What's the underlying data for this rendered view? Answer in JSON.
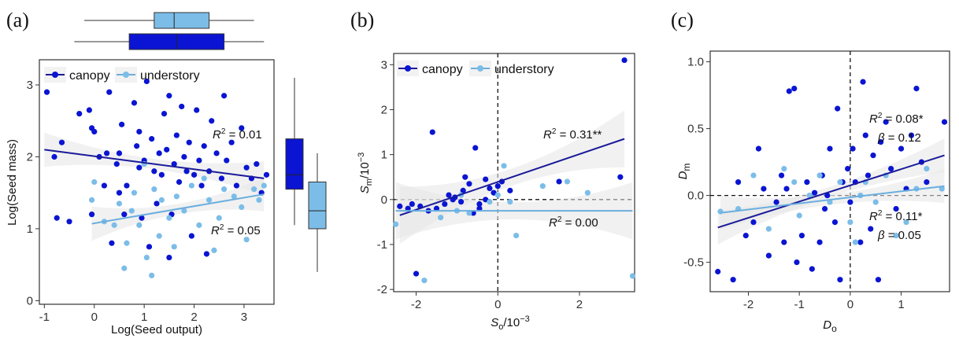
{
  "colors": {
    "canopy": "#0a14d2",
    "understory": "#7cbde8",
    "canopy_line": "#1a1a9a",
    "understory_line": "#6aaede",
    "band": "#e6e6e6"
  },
  "chart_data": [
    {
      "panel": "(a)",
      "type": "scatter",
      "xlabel": "Log(Seed output)",
      "ylabel": "Log(Seed mass)",
      "xlim": [
        -1.1,
        3.6
      ],
      "ylim": [
        -0.05,
        3.35
      ],
      "xticks": [
        "-1",
        "0",
        "1",
        "2",
        "3"
      ],
      "yticks": [
        "0",
        "1",
        "2",
        "3"
      ],
      "legend": "top-left",
      "series": [
        {
          "name": "canopy",
          "points": [
            [
              -0.95,
              2.9
            ],
            [
              -0.8,
              2.0
            ],
            [
              -0.65,
              2.2
            ],
            [
              -0.5,
              1.1
            ],
            [
              -0.75,
              1.15
            ],
            [
              -0.3,
              2.6
            ],
            [
              -0.1,
              2.65
            ],
            [
              -0.05,
              2.4
            ],
            [
              0.0,
              2.35
            ],
            [
              -0.05,
              1.2
            ],
            [
              0.1,
              2.0
            ],
            [
              0.2,
              1.6
            ],
            [
              0.25,
              2.05
            ],
            [
              0.3,
              2.9
            ],
            [
              0.35,
              0.8
            ],
            [
              0.45,
              1.9
            ],
            [
              0.5,
              2.05
            ],
            [
              0.5,
              1.5
            ],
            [
              0.55,
              2.45
            ],
            [
              0.6,
              1.2
            ],
            [
              0.65,
              1.6
            ],
            [
              0.75,
              3.15
            ],
            [
              0.8,
              2.75
            ],
            [
              0.85,
              2.15
            ],
            [
              0.9,
              1.85
            ],
            [
              0.9,
              2.35
            ],
            [
              0.95,
              1.15
            ],
            [
              1.0,
              1.95
            ],
            [
              1.05,
              3.05
            ],
            [
              1.1,
              0.75
            ],
            [
              1.15,
              2.25
            ],
            [
              1.2,
              1.8
            ],
            [
              1.25,
              1.35
            ],
            [
              1.3,
              2.05
            ],
            [
              1.35,
              1.75
            ],
            [
              1.4,
              2.6
            ],
            [
              1.45,
              2.1
            ],
            [
              1.5,
              2.85
            ],
            [
              1.55,
              1.2
            ],
            [
              1.6,
              1.9
            ],
            [
              1.65,
              2.3
            ],
            [
              1.7,
              1.65
            ],
            [
              1.75,
              2.7
            ],
            [
              1.8,
              2.0
            ],
            [
              1.85,
              1.8
            ],
            [
              1.9,
              2.2
            ],
            [
              1.95,
              0.9
            ],
            [
              2.0,
              1.75
            ],
            [
              2.05,
              2.65
            ],
            [
              2.1,
              1.95
            ],
            [
              2.15,
              1.6
            ],
            [
              2.2,
              2.15
            ],
            [
              2.25,
              0.65
            ],
            [
              2.3,
              1.8
            ],
            [
              2.35,
              2.5
            ],
            [
              2.45,
              2.05
            ],
            [
              2.55,
              1.7
            ],
            [
              2.6,
              2.85
            ],
            [
              2.65,
              1.95
            ],
            [
              2.75,
              2.2
            ],
            [
              2.85,
              1.6
            ],
            [
              2.95,
              2.4
            ],
            [
              3.05,
              1.85
            ],
            [
              3.15,
              1.7
            ],
            [
              3.25,
              1.9
            ],
            [
              3.35,
              1.5
            ],
            [
              3.45,
              1.75
            ],
            [
              1.5,
              0.6
            ]
          ],
          "fit": {
            "x": [
              -1.0,
              3.4
            ],
            "y": [
              2.1,
              1.7
            ]
          }
        },
        {
          "name": "understory",
          "points": [
            [
              -0.05,
              1.4
            ],
            [
              0.0,
              1.65
            ],
            [
              0.2,
              1.1
            ],
            [
              0.4,
              1.05
            ],
            [
              0.5,
              1.35
            ],
            [
              0.6,
              0.45
            ],
            [
              0.65,
              0.8
            ],
            [
              0.75,
              1.25
            ],
            [
              0.8,
              1.5
            ],
            [
              0.9,
              1.05
            ],
            [
              1.0,
              1.9
            ],
            [
              1.05,
              0.6
            ],
            [
              1.15,
              0.35
            ],
            [
              1.2,
              1.55
            ],
            [
              1.3,
              0.9
            ],
            [
              1.35,
              1.4
            ],
            [
              1.5,
              1.15
            ],
            [
              1.6,
              0.75
            ],
            [
              1.65,
              1.45
            ],
            [
              1.8,
              1.25
            ],
            [
              1.95,
              1.6
            ],
            [
              2.1,
              1.05
            ],
            [
              2.2,
              1.7
            ],
            [
              2.3,
              1.4
            ],
            [
              2.4,
              0.7
            ],
            [
              2.5,
              1.15
            ],
            [
              2.6,
              1.55
            ],
            [
              2.8,
              1.45
            ],
            [
              2.95,
              1.3
            ],
            [
              3.05,
              0.85
            ],
            [
              3.2,
              1.55
            ],
            [
              3.3,
              1.4
            ],
            [
              3.4,
              1.6
            ]
          ],
          "fit": {
            "x": [
              -0.05,
              3.4
            ],
            "y": [
              1.07,
              1.48
            ]
          }
        }
      ],
      "annotations": [
        {
          "sym": "R",
          "sup": "2",
          "text": " = 0.01"
        },
        {
          "sym": "R",
          "sup": "2",
          "text": " = 0.05"
        }
      ],
      "boxplots": {
        "x_canopy": {
          "whisker": [
            -0.4,
            3.4
          ],
          "box": [
            0.7,
            2.6
          ],
          "median": 1.65
        },
        "x_understory": {
          "whisker": [
            -0.2,
            3.2
          ],
          "box": [
            1.2,
            2.3
          ],
          "median": 1.6
        },
        "y_canopy": {
          "whisker": [
            1.05,
            3.1
          ],
          "box": [
            1.55,
            2.25
          ],
          "median": 1.75
        },
        "y_understory": {
          "whisker": [
            0.4,
            2.05
          ],
          "box": [
            1.0,
            1.65
          ],
          "median": 1.25
        }
      }
    },
    {
      "panel": "(b)",
      "type": "scatter",
      "xlabel": "S_o/10^-3",
      "xlabel_parts": [
        "S",
        "o",
        "/10",
        "−3"
      ],
      "ylabel_parts": [
        "S",
        "m",
        "/10",
        "−3"
      ],
      "xlim": [
        -2.55,
        3.35
      ],
      "ylim": [
        -2.05,
        3.25
      ],
      "xticks": [
        "-2",
        "0",
        "2"
      ],
      "yticks": [
        "-2",
        "-1",
        "0",
        "1",
        "2",
        "3"
      ],
      "legend": "top-left",
      "series": [
        {
          "name": "canopy",
          "points": [
            [
              -2.4,
              -0.15
            ],
            [
              -2.2,
              -0.2
            ],
            [
              -2.1,
              -0.1
            ],
            [
              -1.9,
              -0.15
            ],
            [
              -1.7,
              -0.25
            ],
            [
              -1.5,
              -0.2
            ],
            [
              -1.3,
              -0.1
            ],
            [
              -1.2,
              0.1
            ],
            [
              -1.05,
              0.05
            ],
            [
              -0.9,
              -0.05
            ],
            [
              -0.85,
              0.2
            ],
            [
              -0.7,
              0.35
            ],
            [
              -0.6,
              -0.3
            ],
            [
              -0.45,
              -0.2
            ],
            [
              -0.3,
              0.45
            ],
            [
              -0.2,
              0.25
            ],
            [
              -0.1,
              0.15
            ],
            [
              0.0,
              0.3
            ],
            [
              0.1,
              0.4
            ],
            [
              -1.6,
              1.5
            ],
            [
              -0.55,
              1.15
            ],
            [
              -0.45,
              -0.1
            ],
            [
              -2.0,
              -1.65
            ],
            [
              3.1,
              3.1
            ],
            [
              3.0,
              0.5
            ],
            [
              1.5,
              0.4
            ],
            [
              0.3,
              0.2
            ],
            [
              -1.1,
              0.0
            ],
            [
              -0.8,
              0.5
            ],
            [
              -0.3,
              0.0
            ]
          ],
          "fit": {
            "x": [
              -2.4,
              3.1
            ],
            "y": [
              -0.35,
              1.35
            ]
          }
        },
        {
          "name": "understory",
          "points": [
            [
              -2.5,
              -0.55
            ],
            [
              -1.8,
              -1.8
            ],
            [
              -1.4,
              -0.4
            ],
            [
              -1.0,
              -0.25
            ],
            [
              -0.7,
              -0.3
            ],
            [
              -0.2,
              -0.05
            ],
            [
              0.15,
              0.75
            ],
            [
              0.3,
              -0.05
            ],
            [
              0.45,
              -0.8
            ],
            [
              1.1,
              0.3
            ],
            [
              1.7,
              0.4
            ],
            [
              2.2,
              0.15
            ],
            [
              3.3,
              -1.7
            ],
            [
              -0.9,
              0.1
            ],
            [
              0.0,
              0.1
            ]
          ],
          "fit": {
            "x": [
              -2.5,
              3.3
            ],
            "y": [
              -0.25,
              -0.25
            ]
          }
        }
      ],
      "annotations": [
        {
          "sym": "R",
          "sup": "2",
          "text": " = 0.31**"
        },
        {
          "sym": "R",
          "sup": "2",
          "text": " = 0.00"
        }
      ]
    },
    {
      "panel": "(c)",
      "type": "scatter",
      "xlabel": "D_o",
      "xlabel_parts": [
        "D",
        "o"
      ],
      "ylabel_parts": [
        "D",
        "m"
      ],
      "xlim": [
        -2.75,
        1.95
      ],
      "ylim": [
        -0.72,
        1.08
      ],
      "xticks": [
        "-2",
        "-1",
        "0",
        "1"
      ],
      "yticks": [
        "-0.5",
        "0.0",
        "0.5",
        "1.0"
      ],
      "legend": "none",
      "series": [
        {
          "name": "canopy",
          "points": [
            [
              -2.6,
              -0.57
            ],
            [
              -2.3,
              -0.63
            ],
            [
              -2.2,
              0.1
            ],
            [
              -2.05,
              -0.3
            ],
            [
              -1.9,
              -0.2
            ],
            [
              -1.8,
              0.35
            ],
            [
              -1.7,
              0.05
            ],
            [
              -1.6,
              -0.45
            ],
            [
              -1.45,
              -0.05
            ],
            [
              -1.35,
              0.15
            ],
            [
              -1.25,
              0.05
            ],
            [
              -1.2,
              0.78
            ],
            [
              -1.1,
              0.8
            ],
            [
              -1.05,
              -0.5
            ],
            [
              -0.95,
              -0.3
            ],
            [
              -0.85,
              0.1
            ],
            [
              -0.75,
              -0.55
            ],
            [
              -0.7,
              0.02
            ],
            [
              -0.6,
              -0.35
            ],
            [
              -0.5,
              -0.1
            ],
            [
              -0.45,
              0.0
            ],
            [
              -0.4,
              0.35
            ],
            [
              -0.3,
              -0.2
            ],
            [
              -0.25,
              0.65
            ],
            [
              -0.2,
              -0.63
            ],
            [
              -0.15,
              0.1
            ],
            [
              -0.05,
              0.2
            ],
            [
              0.0,
              -0.05
            ],
            [
              0.05,
              0.35
            ],
            [
              0.1,
              0.1
            ],
            [
              0.2,
              -0.35
            ],
            [
              0.25,
              0.85
            ],
            [
              0.3,
              0.45
            ],
            [
              0.35,
              0.15
            ],
            [
              0.45,
              0.3
            ],
            [
              0.55,
              -0.63
            ],
            [
              0.6,
              0.4
            ],
            [
              0.7,
              0.55
            ],
            [
              0.8,
              0.2
            ],
            [
              0.9,
              -0.1
            ],
            [
              1.0,
              0.35
            ],
            [
              1.1,
              0.05
            ],
            [
              1.2,
              0.45
            ],
            [
              1.3,
              0.8
            ],
            [
              1.4,
              0.25
            ],
            [
              1.5,
              0.1
            ],
            [
              1.85,
              0.55
            ],
            [
              -1.3,
              -0.35
            ],
            [
              -0.55,
              0.15
            ],
            [
              0.4,
              -0.25
            ]
          ],
          "fit": {
            "x": [
              -2.6,
              1.85
            ],
            "y": [
              -0.24,
              0.3
            ]
          }
        },
        {
          "name": "understory",
          "points": [
            [
              -2.55,
              -0.12
            ],
            [
              -2.2,
              -0.1
            ],
            [
              -1.9,
              0.15
            ],
            [
              -1.6,
              -0.25
            ],
            [
              -1.3,
              0.2
            ],
            [
              -1.0,
              -0.15
            ],
            [
              -0.8,
              0.0
            ],
            [
              -0.6,
              0.15
            ],
            [
              -0.4,
              -0.05
            ],
            [
              -0.2,
              0.1
            ],
            [
              0.0,
              -0.2
            ],
            [
              0.2,
              0.0
            ],
            [
              0.3,
              0.1
            ],
            [
              0.5,
              -0.05
            ],
            [
              0.7,
              0.15
            ],
            [
              0.9,
              -0.3
            ],
            [
              1.1,
              -0.2
            ],
            [
              1.3,
              0.05
            ],
            [
              1.5,
              0.2
            ],
            [
              1.8,
              0.05
            ],
            [
              -1.1,
              0.1
            ],
            [
              0.1,
              -0.35
            ]
          ],
          "fit": {
            "x": [
              -2.55,
              1.85
            ],
            "y": [
              -0.13,
              0.07
            ]
          }
        }
      ],
      "annotations": [
        {
          "sym": "R",
          "sup": "2",
          "text": " = 0.08*"
        },
        {
          "sym": "β",
          "sup": "",
          "text": " = 0.12"
        },
        {
          "sym": "R",
          "sup": "2",
          "text": " = 0.11*"
        },
        {
          "sym": "β",
          "sup": "",
          "text": " = 0.05"
        }
      ]
    }
  ]
}
